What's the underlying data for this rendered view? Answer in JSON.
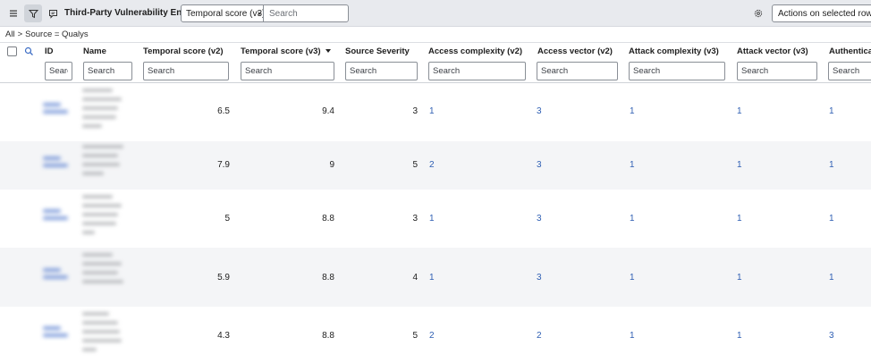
{
  "header": {
    "title": "Third-Party Vulnerability Entries",
    "search_field_selected": "Temporal score (v3)",
    "search_placeholder": "Search",
    "actions_label": "Actions on selected rows..."
  },
  "breadcrumb": {
    "items": [
      "All",
      ">",
      "Source = Qualys"
    ]
  },
  "columns": [
    {
      "label": "ID"
    },
    {
      "label": "Name"
    },
    {
      "label": "Temporal score (v2)"
    },
    {
      "label": "Temporal score (v3)",
      "sorted": "descending"
    },
    {
      "label": "Source Severity"
    },
    {
      "label": "Access complexity (v2)"
    },
    {
      "label": "Access vector (v2)"
    },
    {
      "label": "Attack complexity (v3)"
    },
    {
      "label": "Attack vector (v3)"
    },
    {
      "label": "Authenticati"
    }
  ],
  "column_filter": {
    "placeholder": "Search",
    "id_placeholder": "Searc"
  },
  "rows": [
    {
      "ts_v2": "6.5",
      "ts_v3": "9.4",
      "severity": "3",
      "ac_v2": "1",
      "av_v2": "3",
      "ac_v3": "1",
      "av_v3": "1",
      "auth": "1"
    },
    {
      "ts_v2": "7.9",
      "ts_v3": "9",
      "severity": "5",
      "ac_v2": "2",
      "av_v2": "3",
      "ac_v3": "1",
      "av_v3": "1",
      "auth": "1"
    },
    {
      "ts_v2": "5",
      "ts_v3": "8.8",
      "severity": "3",
      "ac_v2": "1",
      "av_v2": "3",
      "ac_v3": "1",
      "av_v3": "1",
      "auth": "1"
    },
    {
      "ts_v2": "5.9",
      "ts_v3": "8.8",
      "severity": "4",
      "ac_v2": "1",
      "av_v2": "3",
      "ac_v3": "1",
      "av_v3": "1",
      "auth": "1"
    },
    {
      "ts_v2": "4.3",
      "ts_v3": "8.8",
      "severity": "5",
      "ac_v2": "2",
      "av_v2": "2",
      "ac_v3": "1",
      "av_v3": "1",
      "auth": "3"
    }
  ],
  "colors": {
    "header_bg": "#e8eaee",
    "link": "#2f5fb3",
    "row_alt": "#f4f5f7"
  },
  "icons": [
    "menu-icon",
    "filter-icon",
    "comment-icon",
    "gear-icon",
    "search-icon"
  ]
}
